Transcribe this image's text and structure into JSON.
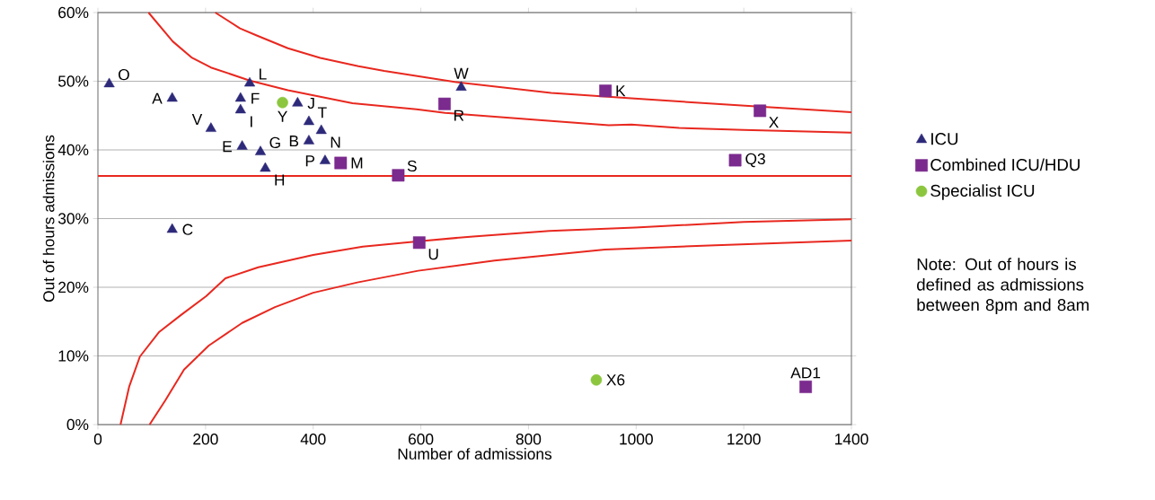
{
  "chart_data": {
    "type": "scatter",
    "xlabel": "Number of admissions",
    "ylabel": "Out of hours admissions",
    "xlim": [
      0,
      1400
    ],
    "xticks": [
      0,
      200,
      400,
      600,
      800,
      1000,
      1200,
      1400
    ],
    "ylim": [
      0,
      60
    ],
    "yticks": [
      {
        "value": 0,
        "label": "0%"
      },
      {
        "value": 10,
        "label": "10%"
      },
      {
        "value": 20,
        "label": "20%"
      },
      {
        "value": 30,
        "label": "30%"
      },
      {
        "value": 40,
        "label": "40%"
      },
      {
        "value": 50,
        "label": "50%"
      },
      {
        "value": 60,
        "label": "60%"
      }
    ],
    "grid": "y",
    "legend": "right",
    "series": [
      {
        "name": "ICU",
        "marker": "triangle",
        "color": "#2e2a7a",
        "x": [
          21,
          138,
          138,
          210,
          268,
          265,
          265,
          282,
          302,
          311,
          371,
          392,
          392,
          415,
          422,
          675
        ],
        "values": [
          49.6,
          47.5,
          28.4,
          43.1,
          40.5,
          47.5,
          45.8,
          49.7,
          39.7,
          37.3,
          46.8,
          44.1,
          41.3,
          42.8,
          38.4,
          49.1
        ]
      },
      {
        "name": "Combined ICU/HDU",
        "marker": "square",
        "color": "#7b2a8e",
        "x": [
          451,
          558,
          644,
          597,
          943,
          1230,
          1184,
          1315
        ],
        "values": [
          38.1,
          36.3,
          46.7,
          26.5,
          48.6,
          45.7,
          38.5,
          5.5
        ]
      },
      {
        "name": "Specialist ICU",
        "marker": "circle",
        "color": "#8cc63f",
        "x": [
          343,
          926
        ],
        "values": [
          46.9,
          6.5
        ]
      },
      {
        "type": "line",
        "color": "#e8281f",
        "x": [
          218,
          264,
          294,
          353,
          413,
          484,
          532,
          663,
          842,
          991,
          1229,
          1400
        ],
        "values": [
          60,
          57.7,
          56.7,
          54.8,
          53.4,
          52.2,
          51.5,
          49.9,
          48.3,
          47.5,
          46.3,
          45.5
        ]
      },
      {
        "type": "line",
        "color": "#e8281f",
        "x": [
          94,
          139,
          175,
          210,
          282,
          353,
          473,
          592,
          645,
          842,
          949,
          991,
          1080,
          1200,
          1400
        ],
        "values": [
          60,
          55.8,
          53.4,
          52.0,
          50.1,
          48.7,
          46.8,
          45.9,
          45.4,
          44.2,
          43.6,
          43.7,
          43.2,
          42.9,
          42.5
        ]
      },
      {
        "type": "line",
        "color": "#e8281f",
        "x": [
          42,
          58,
          78,
          114,
          155,
          201,
          237,
          298,
          400,
          492,
          597,
          697,
          839,
          998,
          1200,
          1400
        ],
        "values": [
          0,
          5.5,
          9.9,
          13.5,
          16,
          18.7,
          21.3,
          22.9,
          24.7,
          25.9,
          26.7,
          27.4,
          28.2,
          28.7,
          29.5,
          29.9
        ]
      },
      {
        "type": "line",
        "color": "#e8281f",
        "x": [
          96,
          125,
          160,
          206,
          268,
          329,
          400,
          482,
          595,
          737,
          942,
          1147,
          1400
        ],
        "values": [
          0,
          3.5,
          8,
          11.5,
          14.8,
          17.1,
          19.2,
          20.7,
          22.4,
          23.9,
          25.5,
          26.1,
          26.8
        ]
      }
    ],
    "ref_lines": [
      {
        "axis": "y",
        "value": 36.2,
        "color": "#e8281f"
      }
    ],
    "annotations": [
      {
        "text": "O",
        "x": 21,
        "y": 49.6
      },
      {
        "text": "A",
        "x": 138,
        "y": 47.5
      },
      {
        "text": "C",
        "x": 138,
        "y": 28.4
      },
      {
        "text": "V",
        "x": 210,
        "y": 43.1
      },
      {
        "text": "E",
        "x": 268,
        "y": 40.5
      },
      {
        "text": "F",
        "x": 265,
        "y": 47.5
      },
      {
        "text": "I",
        "x": 265,
        "y": 45.8
      },
      {
        "text": "L",
        "x": 282,
        "y": 49.7
      },
      {
        "text": "G",
        "x": 302,
        "y": 39.7
      },
      {
        "text": "H",
        "x": 311,
        "y": 37.3
      },
      {
        "text": "J",
        "x": 371,
        "y": 46.8
      },
      {
        "text": "T",
        "x": 392,
        "y": 44.1
      },
      {
        "text": "B",
        "x": 392,
        "y": 41.3
      },
      {
        "text": "N",
        "x": 415,
        "y": 42.8
      },
      {
        "text": "P",
        "x": 422,
        "y": 38.4
      },
      {
        "text": "W",
        "x": 675,
        "y": 49.1
      },
      {
        "text": "M",
        "x": 451,
        "y": 38.1
      },
      {
        "text": "S",
        "x": 558,
        "y": 36.3
      },
      {
        "text": "R",
        "x": 644,
        "y": 46.7
      },
      {
        "text": "U",
        "x": 597,
        "y": 26.5
      },
      {
        "text": "K",
        "x": 943,
        "y": 48.6
      },
      {
        "text": "X",
        "x": 1230,
        "y": 45.7
      },
      {
        "text": "Q3",
        "x": 1184,
        "y": 38.5
      },
      {
        "text": "AD1",
        "x": 1315,
        "y": 5.5
      },
      {
        "text": "Y",
        "x": 343,
        "y": 46.9
      },
      {
        "text": "X6",
        "x": 926,
        "y": 6.5
      },
      "Note: Out of hours is defined as admissions between 8pm and 8am"
    ]
  }
}
